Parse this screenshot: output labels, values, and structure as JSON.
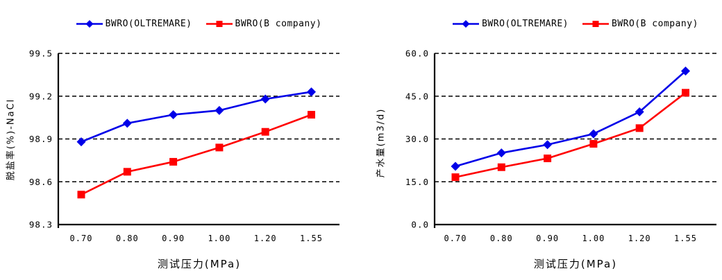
{
  "figure": {
    "background": "#ffffff",
    "grid_color": "#000000",
    "accent_blue": "#0000e8",
    "accent_red": "#ff0000"
  },
  "chart_data": [
    {
      "type": "line",
      "title": "",
      "xlabel": "测试压力(MPa)",
      "ylabel": "脱盐率(%)-NaCl",
      "categories": [
        "0.70",
        "0.80",
        "0.90",
        "1.00",
        "1.20",
        "1.55"
      ],
      "y_ticks": [
        "99.5",
        "99.2",
        "98.9",
        "98.6",
        "98.3"
      ],
      "ylim": [
        98.3,
        99.5
      ],
      "y_step": 0.3,
      "grid": "horizontal-dashed",
      "legend_position": "top",
      "series": [
        {
          "name": "BWRO(OLTREMARE)",
          "marker": "diamond",
          "color": "#0000e8",
          "values": [
            98.88,
            99.01,
            99.07,
            99.1,
            99.18,
            99.23
          ]
        },
        {
          "name": "BWRO(B company)",
          "marker": "square",
          "color": "#ff0000",
          "values": [
            98.51,
            98.67,
            98.74,
            98.84,
            98.95,
            99.07
          ]
        }
      ]
    },
    {
      "type": "line",
      "title": "",
      "xlabel": "测试压力(MPa)",
      "ylabel": "产水量(m3/d)",
      "categories": [
        "0.70",
        "0.80",
        "0.90",
        "1.00",
        "1.20",
        "1.55"
      ],
      "y_ticks": [
        "60.0",
        "45.0",
        "30.0",
        "15.0",
        "0.0"
      ],
      "ylim": [
        0,
        60
      ],
      "y_step": 15,
      "grid": "horizontal-dashed",
      "legend_position": "top",
      "series": [
        {
          "name": "BWRO(OLTREMARE)",
          "marker": "diamond",
          "color": "#0000e8",
          "values": [
            20.4,
            25.1,
            28.0,
            31.8,
            39.5,
            53.8
          ]
        },
        {
          "name": "BWRO(B company)",
          "marker": "square",
          "color": "#ff0000",
          "values": [
            16.6,
            20.1,
            23.2,
            28.3,
            33.8,
            46.2
          ]
        }
      ]
    }
  ]
}
